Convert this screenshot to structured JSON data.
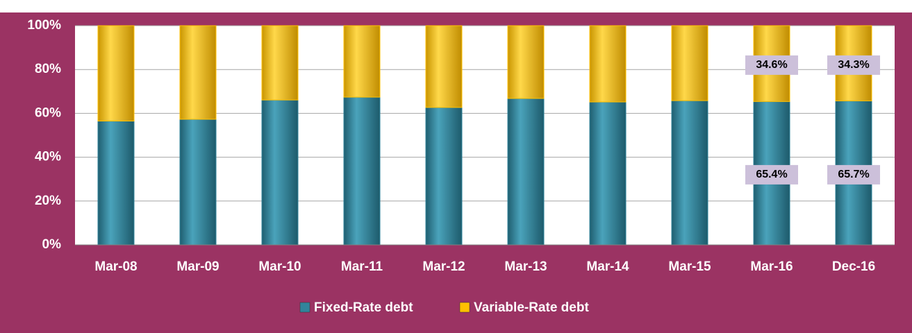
{
  "chart_data": {
    "type": "stacked_bar",
    "categories": [
      "Mar-08",
      "Mar-09",
      "Mar-10",
      "Mar-11",
      "Mar-12",
      "Mar-13",
      "Mar-14",
      "Mar-15",
      "Mar-16",
      "Dec-16"
    ],
    "series": [
      {
        "name": "Fixed-Rate debt",
        "color": "#31849b",
        "values": [
          56.5,
          57.3,
          66.1,
          67.4,
          62.7,
          66.8,
          65.2,
          65.8,
          65.4,
          65.7
        ],
        "value_labels": [
          null,
          null,
          null,
          null,
          null,
          null,
          null,
          null,
          "65.4%",
          "65.7%"
        ]
      },
      {
        "name": "Variable-Rate debt",
        "color": "#ffc000",
        "values": [
          43.5,
          42.7,
          33.9,
          32.6,
          37.3,
          33.2,
          34.8,
          34.2,
          34.6,
          34.3
        ],
        "value_labels": [
          null,
          null,
          null,
          null,
          null,
          null,
          null,
          null,
          "34.6%",
          "34.3%"
        ]
      }
    ],
    "ylim": [
      0,
      100
    ],
    "yticks": [
      {
        "value": 0,
        "label": "0%"
      },
      {
        "value": 20,
        "label": "20%"
      },
      {
        "value": 40,
        "label": "40%"
      },
      {
        "value": 60,
        "label": "60%"
      },
      {
        "value": 80,
        "label": "80%"
      },
      {
        "value": 100,
        "label": "100%"
      }
    ],
    "grid": true,
    "legend": "bottom"
  }
}
